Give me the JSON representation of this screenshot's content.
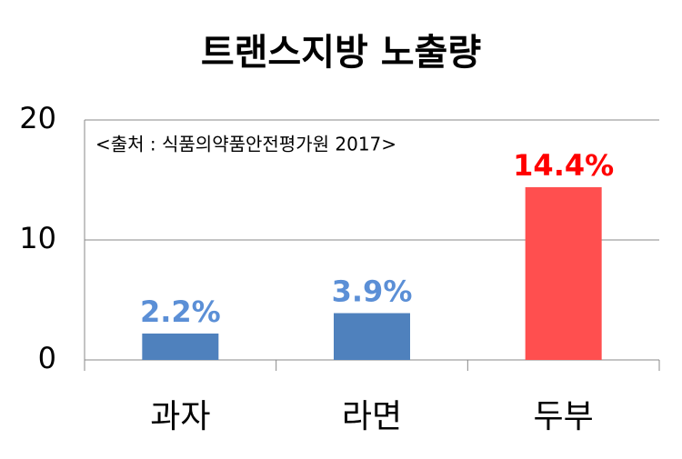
{
  "chart_data": {
    "type": "bar",
    "title": "트랜스지방 노출량",
    "annotation": "<출처 : 식품의약품안전평가원 2017>",
    "categories": [
      "과자",
      "라면",
      "두부"
    ],
    "values": [
      2.2,
      3.9,
      14.4
    ],
    "value_labels": [
      "2.2%",
      "3.9%",
      "14.4%"
    ],
    "colors": [
      "#4f81bd",
      "#4f81bd",
      "#ff4f4f"
    ],
    "value_label_colors": [
      "#5b8fd6",
      "#5b8fd6",
      "#ff0000"
    ],
    "ylim": [
      0,
      20
    ],
    "yticks": [
      0,
      10,
      20
    ],
    "grid": true
  }
}
